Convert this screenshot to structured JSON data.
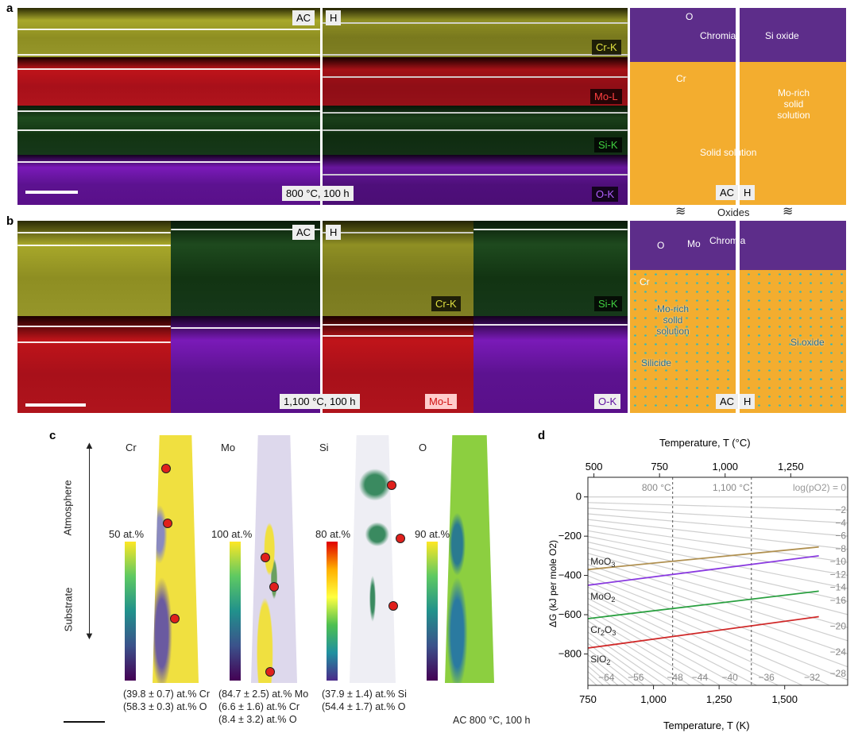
{
  "panel_labels": {
    "a": "a",
    "b": "b",
    "c": "c",
    "d": "d"
  },
  "panel_a": {
    "ac": "AC",
    "h": "H",
    "maps": [
      "Cr-K",
      "Mo-L",
      "Si-K",
      "O-K"
    ],
    "condition": "800 °C, 100 h",
    "schematic": {
      "o": "O",
      "chromia": "Chromia",
      "si_oxide": "Si oxide",
      "cr": "Cr",
      "mo_rich": "Mo-rich solid solution",
      "solid_solution": "Solid solution",
      "ac": "AC",
      "h": "H"
    }
  },
  "oxides_label": "Oxides",
  "panel_b": {
    "ac": "AC",
    "h": "H",
    "maps": {
      "cr": "Cr-K",
      "si": "Si-K",
      "mo": "Mo-L",
      "o": "O-K"
    },
    "condition": "1,100 °C, 100 h",
    "schematic": {
      "o": "O",
      "mo": "Mo",
      "chromia": "Chromia",
      "cr": "Cr",
      "mo_rich": "Mo-rich solid solution",
      "silicide": "Silicide",
      "si_oxide": "Si oxide",
      "ac": "AC",
      "h": "H"
    }
  },
  "panel_c": {
    "atmosphere": "Atmosphere",
    "substrate": "Substrate",
    "elements": [
      {
        "name": "Cr",
        "scale": "50 at.%",
        "composition": [
          "(39.8 ± 0.7) at.% Cr",
          "(58.3 ± 0.3) at.% O"
        ]
      },
      {
        "name": "Mo",
        "scale": "100 at.%",
        "composition": [
          "(84.7 ± 2.5) at.% Mo",
          "(6.6 ± 1.6) at.% Cr",
          "(8.4 ± 3.2) at.% O"
        ]
      },
      {
        "name": "Si",
        "scale": "80 at.%",
        "composition": [
          "(37.9 ± 1.4) at.% Si",
          "(54.4 ± 1.7) at.% O"
        ]
      },
      {
        "name": "O",
        "scale": "90 at.%",
        "composition": []
      }
    ],
    "condition": "AC 800 °C, 100 h"
  },
  "chart_data": {
    "type": "line",
    "title": "",
    "xlabel": "Temperature, T (K)",
    "x2label": "Temperature, T (°C)",
    "ylabel": "ΔG (kJ per mole O2)",
    "xlim": [
      750,
      1740
    ],
    "ylim": [
      -960,
      100
    ],
    "xticks": [
      750,
      1000,
      1250,
      1500
    ],
    "xtick_labels": [
      "750",
      "1,000",
      "1,250",
      "1,500"
    ],
    "x2ticks_C": [
      500,
      750,
      1000,
      1250
    ],
    "x2tick_labels": [
      "500",
      "750",
      "1,000",
      "1,250"
    ],
    "yticks": [
      0,
      -200,
      -400,
      -600,
      -800
    ],
    "ytick_labels": [
      "0",
      "-200",
      "-400",
      "-600",
      "-800"
    ],
    "vlines": [
      {
        "x": 1073,
        "label": "800 °C"
      },
      {
        "x": 1373,
        "label": "1,100 °C"
      }
    ],
    "series": [
      {
        "name": "MoO3",
        "color": "#b09050",
        "x": [
          750,
          1630
        ],
        "y": [
          -370,
          -255
        ]
      },
      {
        "name": "MoO2",
        "color": "#8a3ae0",
        "x": [
          750,
          1630
        ],
        "y": [
          -450,
          -300
        ]
      },
      {
        "name": "Cr2O3",
        "color": "#2aa040",
        "x": [
          750,
          1630
        ],
        "y": [
          -620,
          -480
        ]
      },
      {
        "name": "SiO2",
        "color": "#d02828",
        "x": [
          750,
          1630
        ],
        "y": [
          -770,
          -610
        ]
      }
    ],
    "po2_header": "log(pO2) = 0",
    "po2_right_labels": [
      -2,
      -4,
      -6,
      -8,
      -10,
      -12,
      -14,
      -16,
      -20,
      -24,
      -28
    ],
    "po2_bottom_labels": [
      -64,
      -56,
      -48,
      -44,
      -40,
      -36,
      -32
    ],
    "po2_line_slope_kJ_per_K_per_decade": 0.01914
  }
}
